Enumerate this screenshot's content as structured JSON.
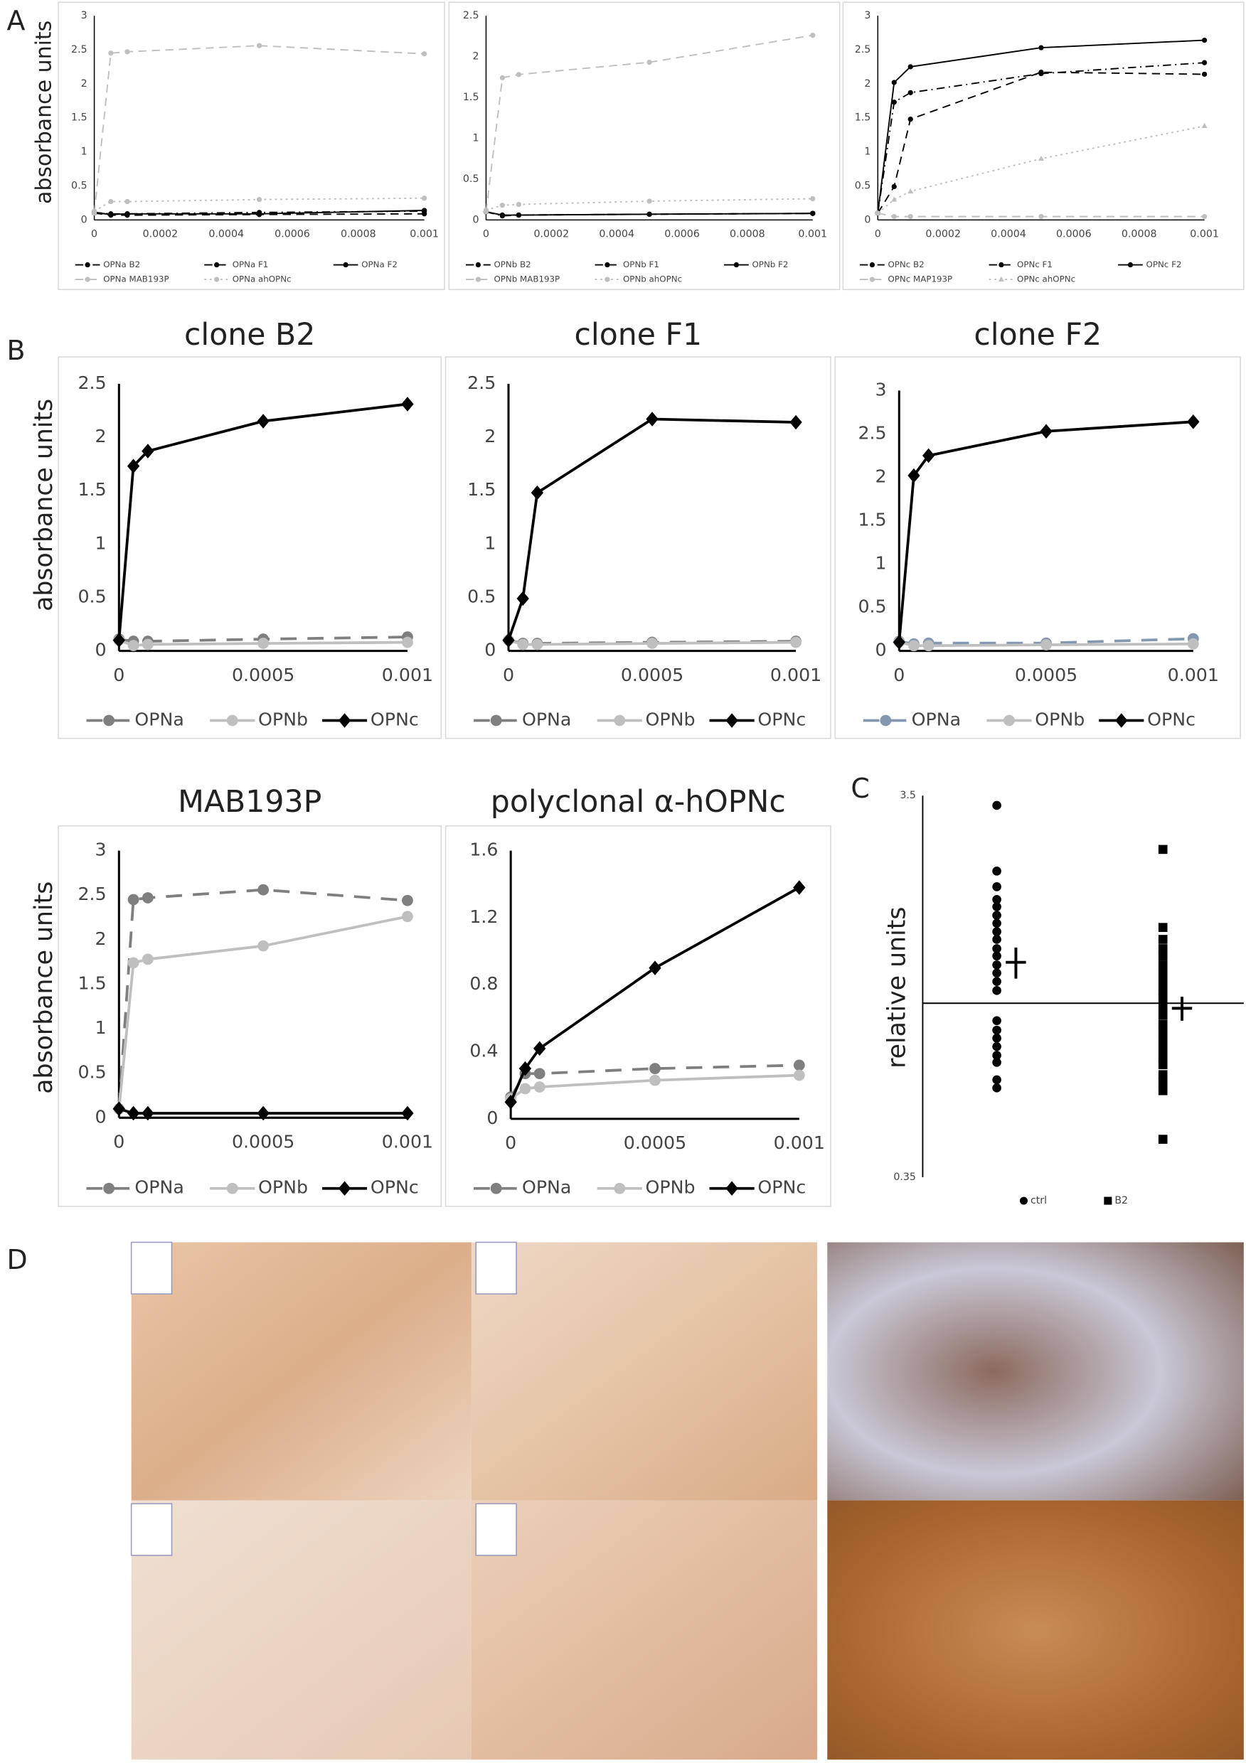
{
  "panel_labels": [
    "A",
    "B",
    "C",
    "D"
  ],
  "chart_data": [
    {
      "type": "line",
      "y_label": "absorbance units",
      "x": [
        0,
        5e-05,
        0.0001,
        0.0005,
        0.001
      ],
      "xlim": [
        0,
        0.001
      ],
      "xticks": [
        0,
        0.0002,
        0.0004,
        0.0006,
        0.0008,
        0.001
      ],
      "ylim": [
        0,
        3
      ],
      "yticks": [
        0,
        0.5,
        1,
        1.5,
        2,
        2.5,
        3
      ],
      "series": [
        {
          "name": "OPNa B2",
          "color": "#000000",
          "dash": "dashdot",
          "marker": "circle",
          "values": [
            0.11,
            0.09,
            0.09,
            0.11,
            0.13
          ]
        },
        {
          "name": "OPNa F1",
          "color": "#000000",
          "dash": "dashed",
          "marker": "circle",
          "values": [
            0.1,
            0.07,
            0.07,
            0.08,
            0.09
          ]
        },
        {
          "name": "OPNa F2",
          "color": "#000000",
          "dash": "solid",
          "marker": "circle",
          "values": [
            0.11,
            0.08,
            0.09,
            0.09,
            0.14
          ]
        },
        {
          "name": "OPNa MAB193P",
          "color": "#bfbfbf",
          "dash": "dashed",
          "marker": "circle",
          "values": [
            0.1,
            2.45,
            2.47,
            2.56,
            2.44
          ]
        },
        {
          "name": "OPNa ahOPNc",
          "color": "#bfbfbf",
          "dash": "dotted",
          "marker": "circle",
          "values": [
            0.13,
            0.27,
            0.27,
            0.3,
            0.32
          ]
        }
      ]
    },
    {
      "type": "line",
      "x": [
        0,
        5e-05,
        0.0001,
        0.0005,
        0.001
      ],
      "xlim": [
        0,
        0.001
      ],
      "xticks": [
        0,
        0.0002,
        0.0004,
        0.0006,
        0.0008,
        0.001
      ],
      "ylim": [
        0,
        2.5
      ],
      "yticks": [
        0,
        0.5,
        1,
        1.5,
        2,
        2.5
      ],
      "series": [
        {
          "name": "OPNb B2",
          "color": "#000000",
          "dash": "dashdot",
          "marker": "circle",
          "values": [
            0.1,
            0.05,
            0.06,
            0.07,
            0.08
          ]
        },
        {
          "name": "OPNb F1",
          "color": "#000000",
          "dash": "dashed",
          "marker": "circle",
          "values": [
            0.1,
            0.06,
            0.06,
            0.07,
            0.08
          ]
        },
        {
          "name": "OPNb F2",
          "color": "#000000",
          "dash": "solid",
          "marker": "circle",
          "values": [
            0.1,
            0.06,
            0.06,
            0.07,
            0.08
          ]
        },
        {
          "name": "OPNb MAB193P",
          "color": "#bfbfbf",
          "dash": "dashed",
          "marker": "circle",
          "values": [
            0.1,
            1.74,
            1.78,
            1.93,
            2.26
          ]
        },
        {
          "name": "OPNb ahOPNc",
          "color": "#bfbfbf",
          "dash": "dotted",
          "marker": "circle",
          "values": [
            0.12,
            0.18,
            0.19,
            0.23,
            0.26
          ]
        }
      ]
    },
    {
      "type": "line",
      "x": [
        0,
        5e-05,
        0.0001,
        0.0005,
        0.001
      ],
      "xlim": [
        0,
        0.001
      ],
      "xticks": [
        0,
        0.0002,
        0.0004,
        0.0006,
        0.0008,
        0.001
      ],
      "ylim": [
        0,
        3
      ],
      "yticks": [
        0,
        0.5,
        1,
        1.5,
        2,
        2.5,
        3
      ],
      "series": [
        {
          "name": "OPNc B2",
          "color": "#000000",
          "dash": "dashdot",
          "marker": "circle",
          "values": [
            0.1,
            1.73,
            1.87,
            2.15,
            2.31
          ]
        },
        {
          "name": "OPNc F1",
          "color": "#000000",
          "dash": "dashed",
          "marker": "circle",
          "values": [
            0.1,
            0.49,
            1.48,
            2.17,
            2.14
          ]
        },
        {
          "name": "OPNc F2",
          "color": "#000000",
          "dash": "solid",
          "marker": "circle",
          "values": [
            0.1,
            2.02,
            2.25,
            2.53,
            2.64
          ]
        },
        {
          "name": "OPNc MAP193P",
          "color": "#bfbfbf",
          "dash": "dashed",
          "marker": "circle",
          "values": [
            0.1,
            0.05,
            0.05,
            0.05,
            0.05
          ]
        },
        {
          "name": "OPNc ahOPNc",
          "color": "#bfbfbf",
          "dash": "dotted",
          "marker": "triangle",
          "values": [
            0.1,
            0.3,
            0.42,
            0.9,
            1.38
          ]
        }
      ]
    },
    {
      "type": "line",
      "title": "clone B2",
      "y_label": "absorbance units",
      "x": [
        0,
        5e-05,
        0.0001,
        0.0005,
        0.001
      ],
      "xlim": [
        0,
        0.001
      ],
      "xticks": [
        0,
        0.0005,
        0.001
      ],
      "ylim": [
        0,
        2.5
      ],
      "yticks": [
        0,
        0.5,
        1,
        1.5,
        2,
        2.5
      ],
      "series": [
        {
          "name": "OPNa",
          "color": "#7f7f7f",
          "dash": "dashed",
          "marker": "circle",
          "values": [
            0.11,
            0.09,
            0.09,
            0.11,
            0.13
          ]
        },
        {
          "name": "OPNb",
          "color": "#bfbfbf",
          "dash": "solid",
          "marker": "circle",
          "values": [
            0.1,
            0.05,
            0.06,
            0.07,
            0.08
          ]
        },
        {
          "name": "OPNc",
          "color": "#000000",
          "dash": "solid",
          "marker": "diamond",
          "values": [
            0.1,
            1.73,
            1.87,
            2.15,
            2.31
          ]
        }
      ]
    },
    {
      "type": "line",
      "title": "clone F1",
      "x": [
        0,
        5e-05,
        0.0001,
        0.0005,
        0.001
      ],
      "xlim": [
        0,
        0.001
      ],
      "xticks": [
        0,
        0.0005,
        0.001
      ],
      "ylim": [
        0,
        2.5
      ],
      "yticks": [
        0,
        0.5,
        1,
        1.5,
        2,
        2.5
      ],
      "series": [
        {
          "name": "OPNa",
          "color": "#7f7f7f",
          "dash": "dashed",
          "marker": "circle",
          "values": [
            0.1,
            0.07,
            0.07,
            0.08,
            0.09
          ]
        },
        {
          "name": "OPNb",
          "color": "#bfbfbf",
          "dash": "solid",
          "marker": "circle",
          "values": [
            0.1,
            0.06,
            0.06,
            0.07,
            0.08
          ]
        },
        {
          "name": "OPNc",
          "color": "#000000",
          "dash": "solid",
          "marker": "diamond",
          "values": [
            0.1,
            0.49,
            1.48,
            2.17,
            2.14
          ]
        }
      ]
    },
    {
      "type": "line",
      "title": "clone F2",
      "x": [
        0,
        5e-05,
        0.0001,
        0.0005,
        0.001
      ],
      "xlim": [
        0,
        0.001
      ],
      "xticks": [
        0,
        0.0005,
        0.001
      ],
      "ylim": [
        0,
        3
      ],
      "yticks": [
        0,
        0.5,
        1,
        1.5,
        2,
        2.5,
        3
      ],
      "series": [
        {
          "name": "OPNa",
          "color": "#8497b0",
          "dash": "dashed",
          "marker": "circle",
          "values": [
            0.11,
            0.08,
            0.09,
            0.09,
            0.14
          ]
        },
        {
          "name": "OPNb",
          "color": "#bfbfbf",
          "dash": "solid",
          "marker": "circle",
          "values": [
            0.1,
            0.06,
            0.06,
            0.07,
            0.08
          ]
        },
        {
          "name": "OPNc",
          "color": "#000000",
          "dash": "solid",
          "marker": "diamond",
          "values": [
            0.1,
            2.02,
            2.25,
            2.53,
            2.64
          ]
        }
      ]
    },
    {
      "type": "line",
      "title": "MAB193P",
      "y_label": "absorbance units",
      "x": [
        0,
        5e-05,
        0.0001,
        0.0005,
        0.001
      ],
      "xlim": [
        0,
        0.001
      ],
      "xticks": [
        0,
        0.0005,
        0.001
      ],
      "ylim": [
        0,
        3
      ],
      "yticks": [
        0,
        0.5,
        1,
        1.5,
        2,
        2.5,
        3
      ],
      "series": [
        {
          "name": "OPNa",
          "color": "#7f7f7f",
          "dash": "dashed",
          "marker": "circle",
          "values": [
            0.1,
            2.45,
            2.47,
            2.56,
            2.44
          ]
        },
        {
          "name": "OPNb",
          "color": "#bfbfbf",
          "dash": "solid",
          "marker": "circle",
          "values": [
            0.1,
            1.74,
            1.78,
            1.93,
            2.26
          ]
        },
        {
          "name": "OPNc",
          "color": "#000000",
          "dash": "solid",
          "marker": "diamond",
          "values": [
            0.1,
            0.05,
            0.05,
            0.05,
            0.05
          ]
        }
      ]
    },
    {
      "type": "line",
      "title": "polyclonal α-hOPNc",
      "x": [
        0,
        5e-05,
        0.0001,
        0.0005,
        0.001
      ],
      "xlim": [
        0,
        0.001
      ],
      "xticks": [
        0,
        0.0005,
        0.001
      ],
      "ylim": [
        0,
        1.6
      ],
      "yticks": [
        0,
        0.4,
        0.8,
        1.2,
        1.6
      ],
      "series": [
        {
          "name": "OPNa",
          "color": "#7f7f7f",
          "dash": "dashed",
          "marker": "circle",
          "values": [
            0.13,
            0.27,
            0.27,
            0.3,
            0.32
          ]
        },
        {
          "name": "OPNb",
          "color": "#bfbfbf",
          "dash": "solid",
          "marker": "circle",
          "values": [
            0.12,
            0.18,
            0.19,
            0.23,
            0.26
          ]
        },
        {
          "name": "OPNc",
          "color": "#000000",
          "dash": "solid",
          "marker": "diamond",
          "values": [
            0.1,
            0.3,
            0.42,
            0.9,
            1.38
          ]
        }
      ]
    },
    {
      "type": "strip",
      "y_label": "relative units",
      "log_scale": true,
      "x_axis_at": 1,
      "ylim": [
        0.35,
        3.5
      ],
      "yticks": [
        0.35,
        3.5
      ],
      "series": [
        {
          "name": "ctrl",
          "color": "#000000",
          "marker": "circle",
          "mean": 1.28,
          "error": 0.12,
          "values": [
            3.3,
            2.22,
            2.02,
            1.87,
            1.79,
            1.7,
            1.62,
            1.54,
            1.47,
            1.39,
            1.33,
            1.26,
            1.2,
            1.14,
            1.08,
            0.9,
            0.85,
            0.81,
            0.77,
            0.73,
            0.7,
            0.63,
            0.6
          ]
        },
        {
          "name": "B2",
          "color": "#000000",
          "marker": "square",
          "mean": 0.97,
          "error": 0.07,
          "values": [
            2.53,
            1.58,
            1.47,
            1.39,
            1.33,
            1.26,
            1.2,
            1.14,
            1.08,
            1.03,
            0.98,
            0.93,
            0.88,
            0.84,
            0.8,
            0.76,
            0.72,
            0.69,
            0.65,
            0.62,
            0.59,
            0.44
          ]
        }
      ]
    }
  ]
}
